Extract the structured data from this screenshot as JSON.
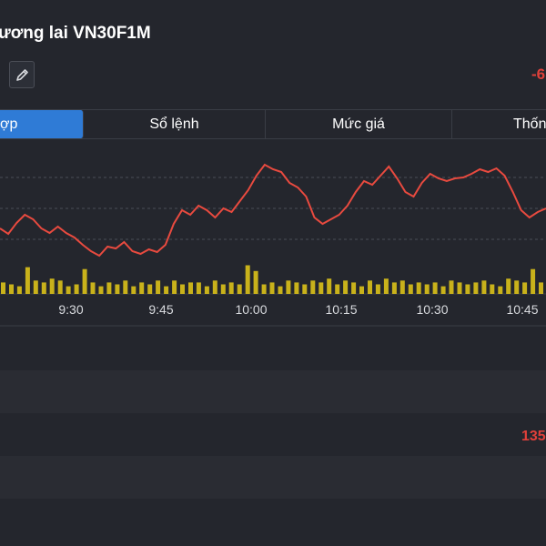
{
  "header": {
    "title": "ương lai VN30F1M",
    "change": "-6"
  },
  "tabs": [
    {
      "label": "ợp",
      "active": true
    },
    {
      "label": "Sổ lệnh",
      "active": false
    },
    {
      "label": "Mức giá",
      "active": false
    },
    {
      "label": "Thống",
      "active": false
    }
  ],
  "colors": {
    "price_line": "#e84a3f",
    "volume_bar": "#c9b21b",
    "active_tab": "#2f7bd6",
    "background": "#24262d"
  },
  "icons": {
    "edit": "pencil-icon"
  },
  "chart_data": {
    "type": "line",
    "x_ticks": [
      "9:30",
      "9:45",
      "10:00",
      "10:15",
      "10:30",
      "10:45"
    ],
    "price": [
      0.3,
      0.24,
      0.36,
      0.45,
      0.4,
      0.3,
      0.25,
      0.32,
      0.25,
      0.2,
      0.12,
      0.05,
      0.0,
      0.1,
      0.08,
      0.15,
      0.05,
      0.02,
      0.07,
      0.04,
      0.12,
      0.35,
      0.5,
      0.45,
      0.55,
      0.5,
      0.42,
      0.52,
      0.48,
      0.6,
      0.72,
      0.88,
      1.0,
      0.95,
      0.92,
      0.8,
      0.75,
      0.65,
      0.42,
      0.35,
      0.4,
      0.45,
      0.55,
      0.7,
      0.82,
      0.78,
      0.88,
      0.98,
      0.85,
      0.7,
      0.65,
      0.8,
      0.9,
      0.85,
      0.82,
      0.85,
      0.86,
      0.9,
      0.95,
      0.92,
      0.96,
      0.88,
      0.7,
      0.5,
      0.42,
      0.48,
      0.52
    ],
    "volume": [
      0.3,
      0.25,
      0.2,
      0.7,
      0.35,
      0.3,
      0.4,
      0.35,
      0.2,
      0.25,
      0.65,
      0.3,
      0.2,
      0.3,
      0.25,
      0.35,
      0.2,
      0.3,
      0.25,
      0.35,
      0.2,
      0.35,
      0.25,
      0.3,
      0.3,
      0.2,
      0.35,
      0.25,
      0.3,
      0.25,
      0.75,
      0.6,
      0.25,
      0.3,
      0.2,
      0.35,
      0.3,
      0.25,
      0.35,
      0.3,
      0.4,
      0.25,
      0.35,
      0.3,
      0.2,
      0.35,
      0.25,
      0.4,
      0.3,
      0.35,
      0.25,
      0.3,
      0.25,
      0.3,
      0.2,
      0.35,
      0.3,
      0.25,
      0.3,
      0.35,
      0.25,
      0.2,
      0.4,
      0.35,
      0.3,
      0.65,
      0.3
    ]
  },
  "rows": {
    "value": "135"
  }
}
